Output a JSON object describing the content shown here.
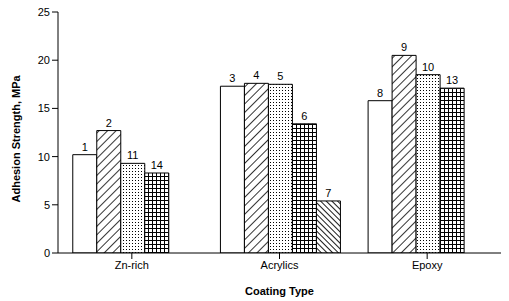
{
  "chart_data": {
    "type": "bar",
    "x_label": "Coating Type",
    "y_label": "Adhesion Strength, MPa",
    "categories": [
      "Zn-rich",
      "Acrylics",
      "Epoxy"
    ],
    "series": [
      {
        "values": [
          10.2,
          17.3,
          15.8
        ],
        "labels": [
          1,
          3,
          8
        ]
      },
      {
        "values": [
          12.7,
          17.6,
          20.5
        ],
        "labels": [
          2,
          4,
          9
        ]
      },
      {
        "values": [
          9.3,
          17.5,
          18.5
        ],
        "labels": [
          11,
          5,
          10
        ]
      },
      {
        "values": [
          8.3,
          13.4,
          17.1
        ],
        "labels": [
          14,
          6,
          13
        ]
      },
      {
        "values": [
          null,
          5.4,
          null
        ],
        "labels": [
          null,
          7,
          null
        ]
      }
    ],
    "ylim": [
      0,
      25
    ],
    "yticks": [
      0,
      5,
      10,
      15,
      20,
      25
    ],
    "grid": false
  }
}
